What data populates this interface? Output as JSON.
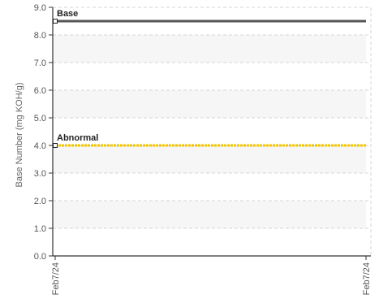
{
  "chart_data": {
    "type": "line",
    "ylabel": "Base Number (mg KOH/g)",
    "xlabel": "",
    "ylim": [
      0,
      9
    ],
    "y_ticks": [
      "0.0",
      "1.0",
      "2.0",
      "3.0",
      "4.0",
      "5.0",
      "6.0",
      "7.0",
      "8.0",
      "9.0"
    ],
    "categories": [
      "Feb7/24",
      "Feb7/24"
    ],
    "grid": true,
    "alternating_bands": true,
    "series": [
      {
        "name": "Base",
        "values": [
          8.5,
          8.5
        ],
        "color": "#555555"
      },
      {
        "name": "Abnormal",
        "values": [
          4.0,
          4.0
        ],
        "color": "#f2c500"
      }
    ]
  }
}
